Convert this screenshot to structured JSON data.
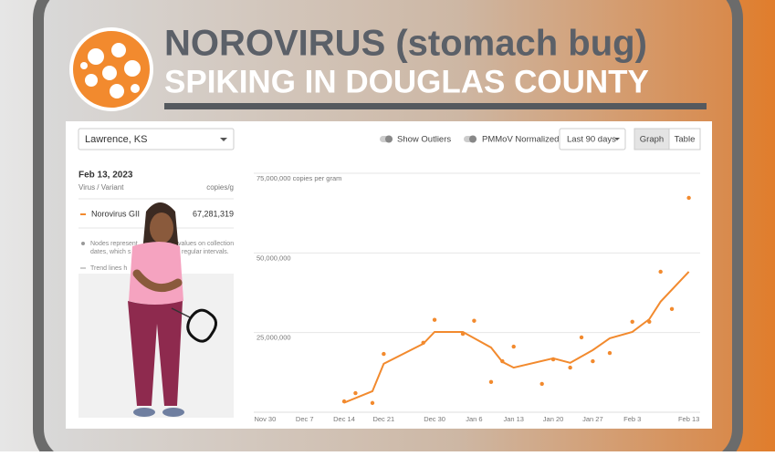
{
  "header": {
    "title": "NOROVIRUS (stomach bug)",
    "subtitle": "SPIKING IN DOUGLAS COUNTY"
  },
  "controls": {
    "location": "Lawrence, KS",
    "outliers": "Show Outliers",
    "normalized": "PMMoV Normalized",
    "range": "Last 90 days",
    "graph": "Graph",
    "table": "Table"
  },
  "sidebar": {
    "date": "Feb 13, 2023",
    "column_1": "Virus / Variant",
    "column_2": "copies/g",
    "variant": "Norovirus GII",
    "variant_value": "67,281,319",
    "notes": [
      "Nodes represent",
      "values on collection",
      "dates, which s",
      "regular intervals.",
      "Trend lines h"
    ]
  },
  "chart_data": {
    "type": "scatter",
    "xticks": [
      "Nov 30",
      "Dec 7",
      "Dec 14",
      "Dec 21",
      "Dec 30",
      "Jan 6",
      "Jan 13",
      "Jan 20",
      "Jan 27",
      "Feb 3",
      "Feb 13"
    ],
    "xlim": [
      "Nov 28",
      "Feb 15"
    ],
    "ylim": [
      0,
      75000000
    ],
    "yticks": [
      {
        "value": 25000000,
        "label": "25,000,000"
      },
      {
        "value": 50000000,
        "label": "50,000,000"
      },
      {
        "value": 75000000,
        "label": "75,000,000 copies per gram"
      }
    ],
    "grid": true,
    "series": [
      {
        "name": "Norovirus GII",
        "color": "#f28a2e",
        "x": [
          "Dec 14",
          "Dec 16",
          "Dec 19",
          "Dec 21",
          "Dec 28",
          "Dec 30",
          "Jan 4",
          "Jan 6",
          "Jan 9",
          "Jan 11",
          "Jan 13",
          "Jan 18",
          "Jan 20",
          "Jan 23",
          "Jan 25",
          "Jan 27",
          "Jan 30",
          "Feb 3",
          "Feb 6",
          "Feb 8",
          "Feb 10",
          "Feb 13"
        ],
        "values": [
          3400000,
          6000000,
          2900000,
          18300000,
          21800000,
          29000000,
          24600000,
          28700000,
          9500000,
          16000000,
          20600000,
          8900000,
          16600000,
          14000000,
          23500000,
          16000000,
          18600000,
          28400000,
          28400000,
          44100000,
          32400000,
          67281319
        ]
      }
    ],
    "trend_line": {
      "color": "#f28a2e",
      "x": [
        "Dec 14",
        "Dec 19",
        "Dec 21",
        "Dec 28",
        "Dec 30",
        "Jan 4",
        "Jan 9",
        "Jan 11",
        "Jan 13",
        "Jan 20",
        "Jan 23",
        "Jan 27",
        "Jan 30",
        "Feb 3",
        "Feb 6",
        "Feb 8",
        "Feb 13"
      ],
      "values": [
        3000000,
        6600000,
        15200000,
        21500000,
        25200000,
        25200000,
        20300000,
        15800000,
        14000000,
        16900000,
        15500000,
        19500000,
        23200000,
        25200000,
        29200000,
        34700000,
        44100000
      ]
    }
  }
}
